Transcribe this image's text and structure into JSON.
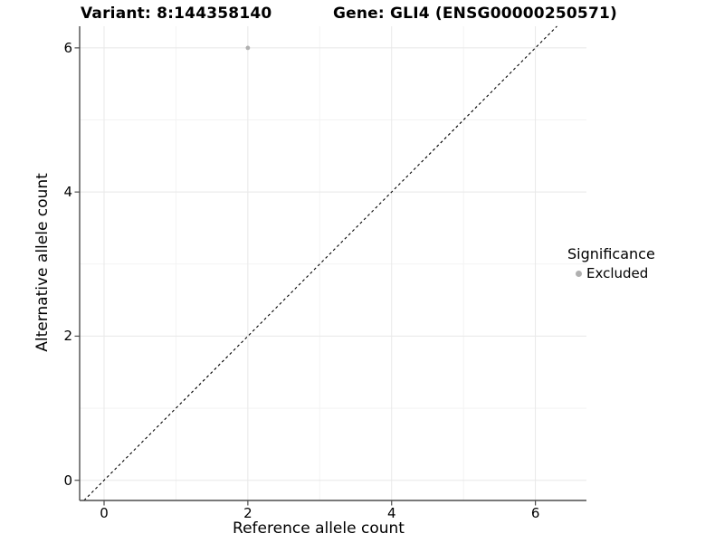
{
  "chart_data": {
    "type": "scatter",
    "title_left": "Variant: 8:144358140",
    "title_right": "Gene: GLI4 (ENSG00000250571)",
    "xlabel": "Reference allele count",
    "ylabel": "Alternative allele count",
    "xlim": [
      -0.34,
      6.71
    ],
    "ylim": [
      -0.28,
      6.3
    ],
    "x_major_ticks": [
      0,
      2,
      4,
      6
    ],
    "y_major_ticks": [
      0,
      2,
      4,
      6
    ],
    "x_minor_gridlines": [
      1,
      3,
      5
    ],
    "y_minor_gridlines": [
      1,
      3,
      5
    ],
    "grid": "major+minor",
    "series": [
      {
        "name": "Excluded",
        "color": "#b0b0b0",
        "points": [
          {
            "x": 2,
            "y": 6
          }
        ]
      }
    ],
    "reference_line": {
      "slope": 1,
      "intercept": 0,
      "linestyle": "dashed",
      "color": "#000000"
    },
    "legend": {
      "title": "Significance",
      "position": "right",
      "items": [
        {
          "label": "Excluded",
          "color": "#b0b0b0"
        }
      ]
    },
    "style": {
      "background": "#ffffff",
      "grid_major_color": "#e8e8e8",
      "grid_minor_color": "#f3f3f3",
      "axis_line_color": "#4d4d4d",
      "text_color": "#000000"
    }
  }
}
